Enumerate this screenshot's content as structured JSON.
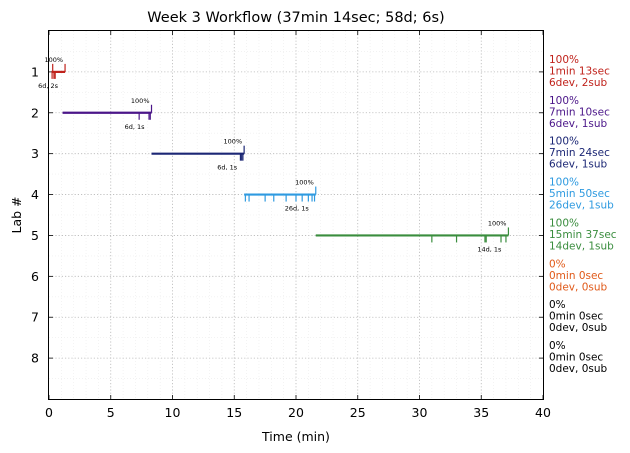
{
  "chart_data": {
    "type": "timeline",
    "title": "Week 3 Workflow (37min 14sec; 58d; 6s)",
    "xlabel": "Time (min)",
    "ylabel": "Lab #",
    "xlim": [
      0,
      40
    ],
    "ylim": [
      9,
      0
    ],
    "x_ticks": [
      0,
      5,
      10,
      15,
      20,
      25,
      30,
      35,
      40
    ],
    "y_ticks": [
      1,
      2,
      3,
      4,
      5,
      6,
      7,
      8
    ],
    "grid": true,
    "labs": [
      {
        "lab": 1,
        "color": "#c0221b",
        "start": 0.2,
        "end": 1.3,
        "percent_label": "100%",
        "count_label": "6d, 2s",
        "ticks": [
          0.25,
          0.4,
          0.5
        ],
        "sub_ticks": [
          0.3,
          1.3
        ],
        "summary": [
          "100%",
          "1min 13sec",
          "6dev, 2sub"
        ]
      },
      {
        "lab": 2,
        "color": "#4b1689",
        "start": 1.1,
        "end": 8.3,
        "percent_label": "100%",
        "count_label": "6d, 1s",
        "ticks": [
          7.3,
          8.1,
          8.2
        ],
        "sub_ticks": [
          8.3
        ],
        "summary": [
          "100%",
          "7min 10sec",
          "6dev, 1sub"
        ]
      },
      {
        "lab": 3,
        "color": "#1c2775",
        "start": 8.3,
        "end": 15.8,
        "percent_label": "100%",
        "count_label": "6d, 1s",
        "ticks": [
          15.5,
          15.6,
          15.7
        ],
        "sub_ticks": [
          15.8
        ],
        "summary": [
          "100%",
          "7min 24sec",
          "6dev, 1sub"
        ]
      },
      {
        "lab": 4,
        "color": "#2e9ae0",
        "start": 15.8,
        "end": 21.6,
        "percent_label": "100%",
        "count_label": "26d, 1s",
        "ticks": [
          15.9,
          16.2,
          17.5,
          18.2,
          19.2,
          20.0,
          20.5,
          21.0,
          21.3,
          21.5
        ],
        "sub_ticks": [
          21.6
        ],
        "summary": [
          "100%",
          "5min 50sec",
          "26dev, 1sub"
        ]
      },
      {
        "lab": 5,
        "color": "#3a8d3e",
        "start": 21.6,
        "end": 37.2,
        "percent_label": "100%",
        "count_label": "14d, 1s",
        "ticks": [
          31.0,
          33.0,
          35.3,
          35.4,
          36.6,
          37.0
        ],
        "sub_ticks": [
          37.2
        ],
        "summary": [
          "100%",
          "15min 37sec",
          "14dev, 1sub"
        ]
      },
      {
        "lab": 6,
        "color": "#e05a1a",
        "summary": [
          "0%",
          "0min 0sec",
          "0dev, 0sub"
        ]
      },
      {
        "lab": 7,
        "color": "#000000",
        "summary": [
          "0%",
          "0min 0sec",
          "0dev, 0sub"
        ]
      },
      {
        "lab": 8,
        "color": "#000000",
        "summary": [
          "0%",
          "0min 0sec",
          "0dev, 0sub"
        ]
      }
    ]
  }
}
